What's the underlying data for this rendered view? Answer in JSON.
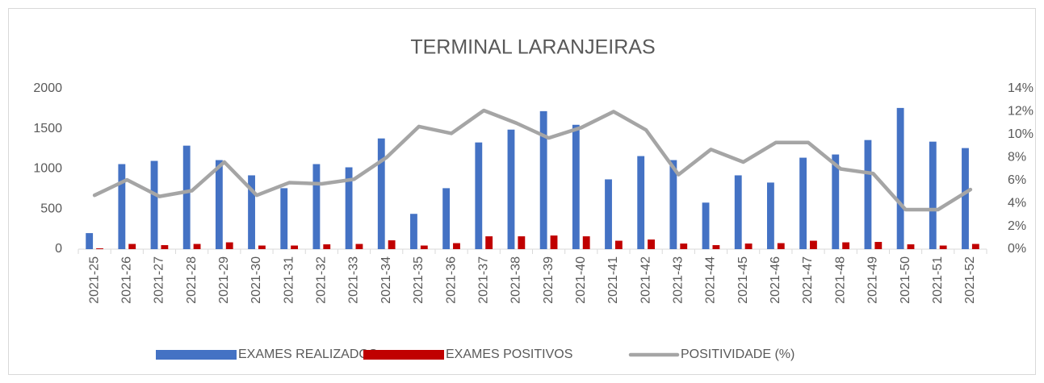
{
  "chart_data": {
    "type": "bar-line",
    "title": "TERMINAL LARANJEIRAS",
    "categories": [
      "2021-25",
      "2021-26",
      "2021-27",
      "2021-28",
      "2021-29",
      "2021-30",
      "2021-31",
      "2021-32",
      "2021-33",
      "2021-34",
      "2021-35",
      "2021-36",
      "2021-37",
      "2021-38",
      "2021-39",
      "2021-40",
      "2021-41",
      "2021-42",
      "2021-43",
      "2021-44",
      "2021-45",
      "2021-46",
      "2021-47",
      "2021-48",
      "2021-49",
      "2021-50",
      "2021-51",
      "2021-52"
    ],
    "series": [
      {
        "name": "EXAMES REALIZADOS",
        "color": "#4472c4",
        "kind": "bar",
        "values": [
          200,
          1060,
          1100,
          1290,
          1110,
          920,
          760,
          1060,
          1020,
          1380,
          440,
          760,
          1330,
          1490,
          1720,
          1550,
          870,
          1160,
          1110,
          580,
          920,
          830,
          1140,
          1180,
          1360,
          1760,
          1340,
          1260
        ]
      },
      {
        "name": "EXAMES POSITIVOS",
        "color": "#c00000",
        "kind": "bar",
        "values": [
          10,
          65,
          50,
          65,
          85,
          45,
          45,
          60,
          65,
          110,
          45,
          75,
          160,
          160,
          170,
          160,
          105,
          120,
          70,
          50,
          70,
          75,
          105,
          85,
          90,
          60,
          45,
          65
        ]
      },
      {
        "name": "POSITIVIDADE (%)",
        "color": "#a5a5a5",
        "kind": "line",
        "axis": "y2",
        "values": [
          4.7,
          6.05,
          4.6,
          5.1,
          7.6,
          4.7,
          5.8,
          5.7,
          6.1,
          8.0,
          10.7,
          10.1,
          12.1,
          11.0,
          9.7,
          10.6,
          12.0,
          10.4,
          6.5,
          8.7,
          7.6,
          9.3,
          9.3,
          7.0,
          6.6,
          3.45,
          3.45,
          5.2
        ]
      }
    ],
    "ylim": [
      0,
      2000
    ],
    "yticks": [
      0,
      500,
      1000,
      1500,
      2000
    ],
    "y2lim": [
      0,
      14
    ],
    "y2ticks": [
      {
        "value": 0,
        "label": "0%"
      },
      {
        "value": 2,
        "label": "2%"
      },
      {
        "value": 4,
        "label": "4%"
      },
      {
        "value": 6,
        "label": "6%"
      },
      {
        "value": 8,
        "label": "8%"
      },
      {
        "value": 10,
        "label": "10%"
      },
      {
        "value": 12,
        "label": "12%"
      },
      {
        "value": 14,
        "label": "14%"
      }
    ],
    "legend": "bottom"
  }
}
